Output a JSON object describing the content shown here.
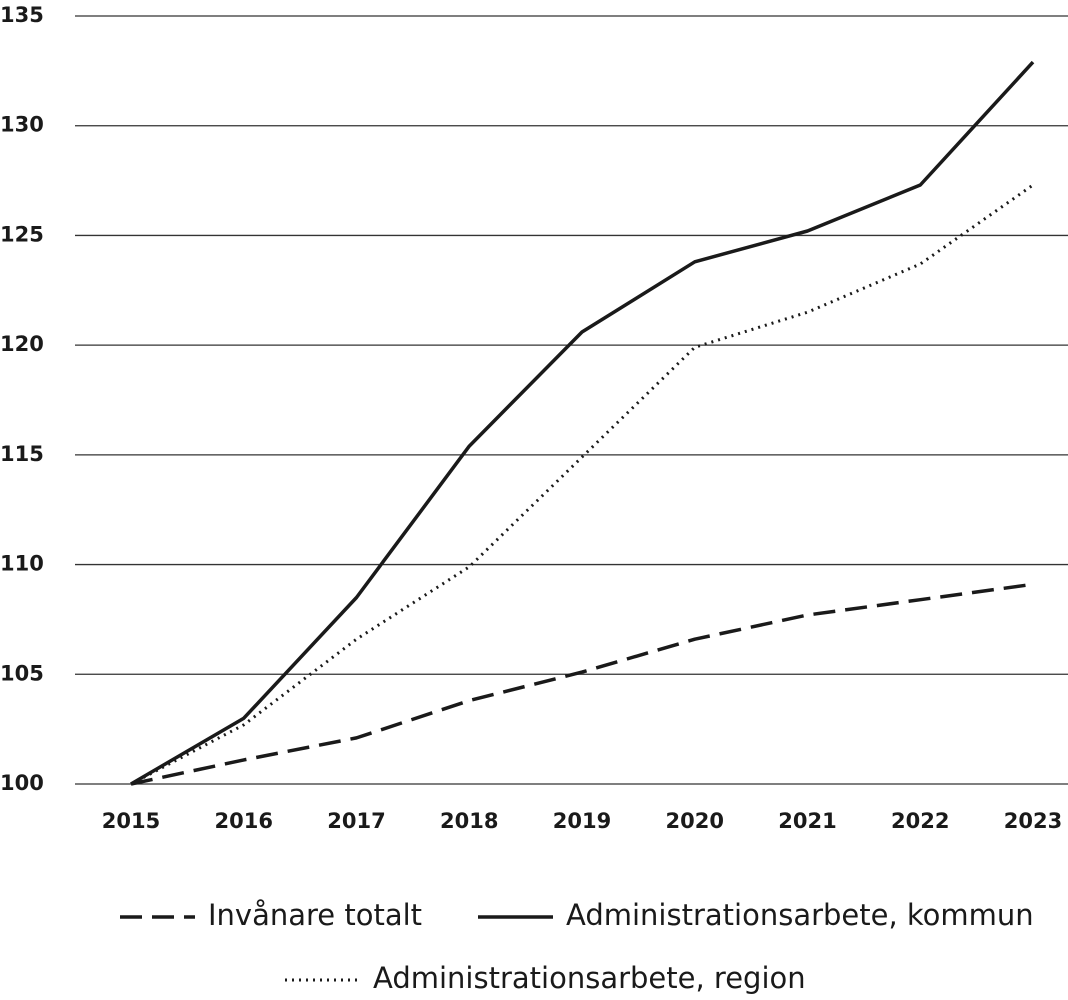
{
  "chart_data": {
    "type": "line",
    "categories": [
      "2015",
      "2016",
      "2017",
      "2018",
      "2019",
      "2020",
      "2021",
      "2022",
      "2023"
    ],
    "series": [
      {
        "name": "Invånare totalt",
        "color": "#1a1a1a",
        "style": "dashed",
        "values": [
          100,
          101.1,
          102.1,
          103.8,
          105.1,
          106.6,
          107.7,
          108.4,
          109.1
        ]
      },
      {
        "name": "Administrationsarbete, kommun",
        "color": "#1a1a1a",
        "style": "solid",
        "values": [
          100,
          103.0,
          108.5,
          115.4,
          120.6,
          123.8,
          125.2,
          127.3,
          132.9
        ]
      },
      {
        "name": "Administrationsarbete, region",
        "color": "#1a1a1a",
        "style": "dotted",
        "values": [
          100,
          102.7,
          106.6,
          109.9,
          114.9,
          119.9,
          121.5,
          123.7,
          127.3
        ]
      }
    ],
    "ylim": [
      100,
      135
    ],
    "yticks": [
      100,
      105,
      110,
      115,
      120,
      125,
      130,
      135
    ],
    "grid": true,
    "legend": "bottom"
  }
}
